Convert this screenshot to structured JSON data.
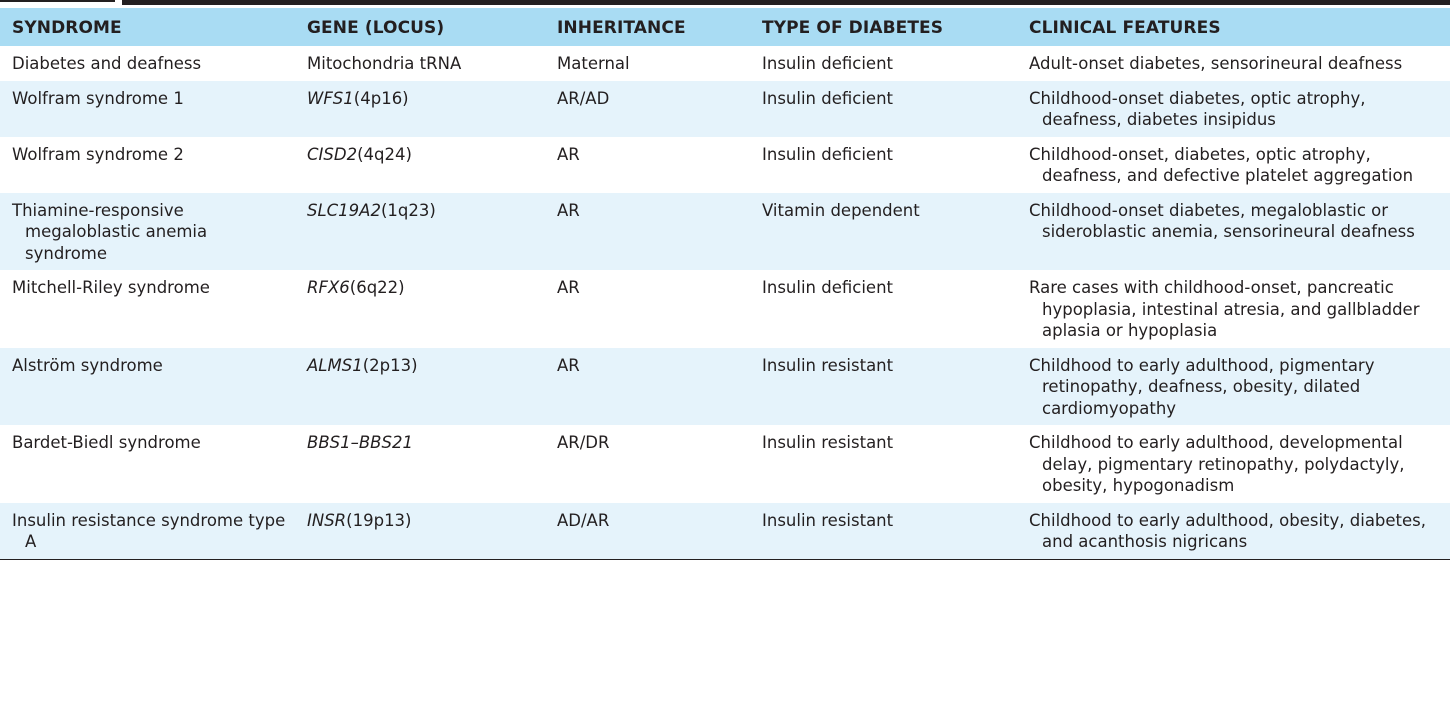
{
  "table": {
    "headers": [
      "SYNDROME",
      "GENE (LOCUS)",
      "INHERITANCE",
      "TYPE OF DIABETES",
      "CLINICAL FEATURES"
    ],
    "rows": [
      {
        "syndrome": "Diabetes and deafness",
        "gene": "Mitochondria tRNA",
        "locus": "",
        "inheritance": "Maternal",
        "type": "Insulin deficient",
        "features": "Adult-onset diabetes, sensorineural deafness",
        "gene_italic": false
      },
      {
        "syndrome": "Wolfram syndrome 1",
        "gene": "WFS1",
        "locus": "(4p16)",
        "inheritance": "AR/AD",
        "type": "Insulin deficient",
        "features": "Childhood-onset diabetes, optic atrophy, deafness, diabetes insipidus",
        "gene_italic": true
      },
      {
        "syndrome": "Wolfram syndrome 2",
        "gene": "CISD2",
        "locus": "(4q24)",
        "inheritance": "AR",
        "type": "Insulin deficient",
        "features": "Childhood-onset, diabetes, optic atrophy, deafness, and defective platelet aggregation",
        "gene_italic": true
      },
      {
        "syndrome": "Thiamine-responsive megaloblastic anemia syndrome",
        "gene": "SLC19A2",
        "locus": "(1q23)",
        "inheritance": "AR",
        "type": "Vitamin dependent",
        "features": "Childhood-onset diabetes, megaloblastic or sideroblastic anemia, sensorineural deafness",
        "gene_italic": true
      },
      {
        "syndrome": "Mitchell-Riley syndrome",
        "gene": "RFX6",
        "locus": "(6q22)",
        "inheritance": "AR",
        "type": "Insulin deficient",
        "features": "Rare cases with childhood-onset, pancreatic hypoplasia, intestinal atresia, and gallbladder aplasia or hypoplasia",
        "gene_italic": true
      },
      {
        "syndrome": "Alström syndrome",
        "gene": "ALMS1",
        "locus": "(2p13)",
        "inheritance": "AR",
        "type": "Insulin resistant",
        "features": "Childhood to early adulthood, pigmentary retinopathy, deafness, obesity, dilated cardiomyopathy",
        "gene_italic": true
      },
      {
        "syndrome": "Bardet-Biedl syndrome",
        "gene": "BBS1–BBS21",
        "locus": "",
        "inheritance": "AR/DR",
        "type": "Insulin resistant",
        "features": "Childhood to early adulthood, developmental delay, pigmentary retinopathy, polydactyly, obesity, hypogonadism",
        "gene_italic": true
      },
      {
        "syndrome": "Insulin resistance syndrome type A",
        "gene": "INSR",
        "locus": "(19p13)",
        "inheritance": "AD/AR",
        "type": "Insulin resistant",
        "features": "Childhood to early adulthood, obesity, diabetes, and acanthosis nigricans",
        "gene_italic": true
      }
    ]
  },
  "colors": {
    "header_bg": "#a9dcf3",
    "row_shade": "#e5f3fb",
    "text": "#231f20"
  }
}
